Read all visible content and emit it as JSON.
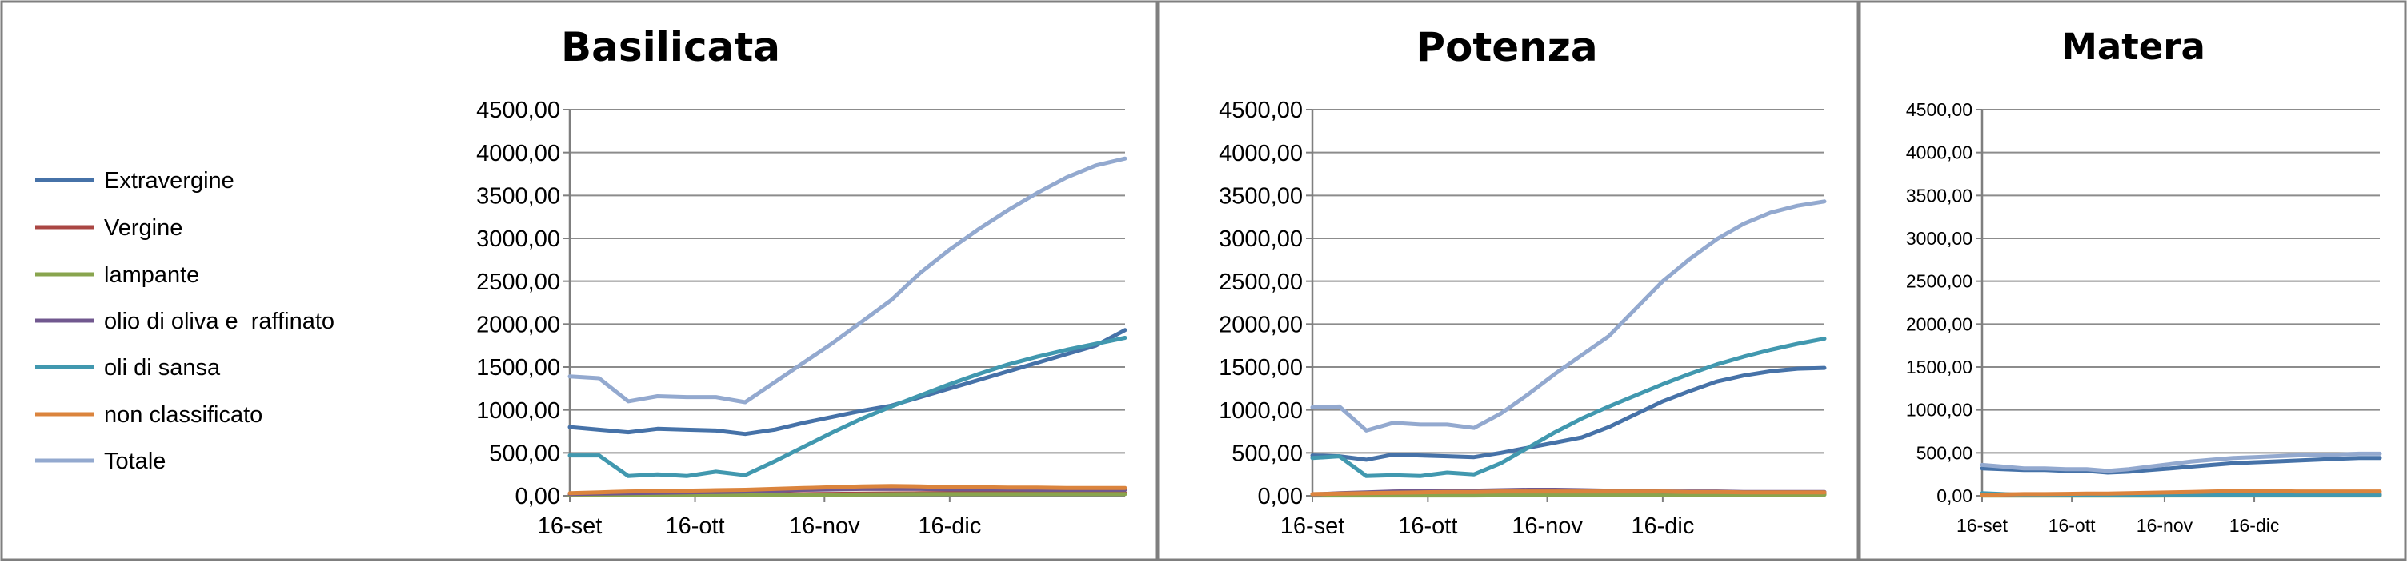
{
  "colors": {
    "Extravergine": "#4672a8",
    "Vergine": "#aa4643",
    "lampante": "#89a54e",
    "olio di oliva e  raffinato": "#71588f",
    "oli di sansa": "#4198af",
    "non classificato": "#db843d",
    "Totale": "#93a9cf"
  },
  "legend": {
    "items": [
      "Extravergine",
      "Vergine",
      "lampante",
      "olio di oliva e  raffinato",
      "oli di sansa",
      "non classificato",
      "Totale"
    ]
  },
  "chart_data": [
    {
      "type": "line",
      "title": "Basilicata",
      "xlabel": "",
      "ylabel": "",
      "ylim": [
        0,
        4500
      ],
      "y_ticks": [
        "0,00",
        "500,00",
        "1000,00",
        "1500,00",
        "2000,00",
        "2500,00",
        "3000,00",
        "3500,00",
        "4000,00",
        "4500,00"
      ],
      "x": [
        0,
        7,
        14,
        21,
        28,
        35,
        42,
        49,
        56,
        63,
        70,
        77,
        84,
        91,
        98,
        105,
        112,
        119,
        126,
        133
      ],
      "x_ticks": [
        {
          "label": "16-set",
          "x": 0
        },
        {
          "label": "16-ott",
          "x": 30
        },
        {
          "label": "16-nov",
          "x": 61
        },
        {
          "label": "16-dic",
          "x": 91
        }
      ],
      "xlim": [
        0,
        133
      ],
      "grid": true,
      "series": [
        {
          "name": "Extravergine",
          "values": [
            800,
            770,
            740,
            780,
            770,
            760,
            720,
            770,
            850,
            920,
            990,
            1050,
            1150,
            1250,
            1350,
            1450,
            1550,
            1650,
            1750,
            1930
          ]
        },
        {
          "name": "Vergine",
          "values": [
            10,
            10,
            10,
            12,
            12,
            12,
            15,
            18,
            20,
            22,
            25,
            28,
            30,
            32,
            32,
            30,
            30,
            30,
            30,
            30
          ]
        },
        {
          "name": "lampante",
          "values": [
            5,
            5,
            5,
            5,
            5,
            5,
            5,
            8,
            10,
            12,
            15,
            18,
            20,
            20,
            20,
            20,
            20,
            20,
            20,
            20
          ]
        },
        {
          "name": "olio di oliva e  raffinato",
          "values": [
            20,
            25,
            30,
            35,
            40,
            45,
            50,
            60,
            70,
            75,
            80,
            80,
            80,
            75,
            75,
            75,
            70,
            70,
            70,
            70
          ]
        },
        {
          "name": "oli di sansa",
          "values": [
            470,
            470,
            230,
            250,
            230,
            280,
            240,
            400,
            570,
            740,
            900,
            1040,
            1170,
            1300,
            1420,
            1530,
            1620,
            1700,
            1770,
            1840
          ]
        },
        {
          "name": "non classificato",
          "values": [
            30,
            40,
            50,
            55,
            60,
            65,
            70,
            80,
            90,
            100,
            110,
            115,
            110,
            100,
            100,
            95,
            95,
            90,
            90,
            90
          ]
        },
        {
          "name": "Totale",
          "values": [
            1390,
            1370,
            1100,
            1160,
            1150,
            1150,
            1090,
            1320,
            1550,
            1780,
            2030,
            2280,
            2600,
            2870,
            3110,
            3330,
            3530,
            3710,
            3850,
            3930
          ]
        }
      ]
    },
    {
      "type": "line",
      "title": "Potenza",
      "xlabel": "",
      "ylabel": "",
      "ylim": [
        0,
        4500
      ],
      "y_ticks": [
        "0,00",
        "500,00",
        "1000,00",
        "1500,00",
        "2000,00",
        "2500,00",
        "3000,00",
        "3500,00",
        "4000,00",
        "4500,00"
      ],
      "x": [
        0,
        7,
        14,
        21,
        28,
        35,
        42,
        49,
        56,
        63,
        70,
        77,
        84,
        91,
        98,
        105,
        112,
        119,
        126,
        133
      ],
      "x_ticks": [
        {
          "label": "16-set",
          "x": 0
        },
        {
          "label": "16-ott",
          "x": 30
        },
        {
          "label": "16-nov",
          "x": 61
        },
        {
          "label": "16-dic",
          "x": 91
        }
      ],
      "xlim": [
        0,
        133
      ],
      "grid": true,
      "series": [
        {
          "name": "Extravergine",
          "values": [
            470,
            460,
            420,
            480,
            470,
            460,
            450,
            500,
            560,
            620,
            680,
            800,
            950,
            1100,
            1220,
            1330,
            1400,
            1450,
            1480,
            1490
          ]
        },
        {
          "name": "Vergine",
          "values": [
            8,
            8,
            8,
            10,
            10,
            10,
            12,
            14,
            16,
            18,
            20,
            20,
            20,
            20,
            20,
            20,
            20,
            20,
            20,
            20
          ]
        },
        {
          "name": "lampante",
          "values": [
            4,
            4,
            4,
            4,
            4,
            4,
            4,
            6,
            8,
            10,
            12,
            12,
            12,
            12,
            12,
            12,
            12,
            12,
            12,
            12
          ]
        },
        {
          "name": "olio di oliva e  raffinato",
          "values": [
            15,
            30,
            40,
            50,
            55,
            60,
            60,
            65,
            70,
            70,
            65,
            60,
            55,
            50,
            50,
            50,
            45,
            45,
            45,
            45
          ]
        },
        {
          "name": "oli di sansa",
          "values": [
            440,
            460,
            230,
            240,
            230,
            270,
            250,
            380,
            560,
            740,
            900,
            1040,
            1170,
            1300,
            1420,
            1530,
            1620,
            1700,
            1770,
            1830
          ]
        },
        {
          "name": "non classificato",
          "values": [
            20,
            25,
            30,
            35,
            40,
            45,
            45,
            50,
            50,
            50,
            50,
            50,
            50,
            50,
            45,
            45,
            40,
            40,
            40,
            40
          ]
        },
        {
          "name": "Totale",
          "values": [
            1030,
            1040,
            760,
            850,
            830,
            830,
            790,
            960,
            1180,
            1420,
            1640,
            1860,
            2180,
            2500,
            2760,
            2990,
            3170,
            3300,
            3380,
            3430
          ]
        }
      ]
    },
    {
      "type": "line",
      "title": "Matera",
      "xlabel": "",
      "ylabel": "",
      "ylim": [
        0,
        4500
      ],
      "y_ticks": [
        "0,00",
        "500,00",
        "1000,00",
        "1500,00",
        "2000,00",
        "2500,00",
        "3000,00",
        "3500,00",
        "4000,00",
        "4500,00"
      ],
      "x": [
        0,
        7,
        14,
        21,
        28,
        35,
        42,
        49,
        56,
        63,
        70,
        77,
        84,
        91,
        98,
        105,
        112,
        119,
        126,
        133
      ],
      "x_ticks": [
        {
          "label": "16-set",
          "x": 0
        },
        {
          "label": "16-ott",
          "x": 30
        },
        {
          "label": "16-nov",
          "x": 61
        },
        {
          "label": "16-dic",
          "x": 91
        }
      ],
      "xlim": [
        0,
        133
      ],
      "grid": true,
      "series": [
        {
          "name": "Extravergine",
          "values": [
            320,
            310,
            300,
            300,
            290,
            290,
            270,
            280,
            300,
            320,
            340,
            360,
            380,
            390,
            400,
            410,
            420,
            430,
            440,
            440
          ]
        },
        {
          "name": "Vergine",
          "values": [
            5,
            5,
            5,
            5,
            5,
            5,
            5,
            6,
            6,
            7,
            8,
            8,
            8,
            8,
            8,
            8,
            8,
            8,
            8,
            8
          ]
        },
        {
          "name": "lampante",
          "values": [
            2,
            2,
            2,
            2,
            2,
            2,
            2,
            3,
            3,
            4,
            4,
            4,
            4,
            4,
            4,
            4,
            4,
            4,
            4,
            4
          ]
        },
        {
          "name": "olio di oliva e  raffinato",
          "values": [
            10,
            10,
            12,
            12,
            14,
            14,
            15,
            16,
            18,
            18,
            18,
            18,
            18,
            16,
            16,
            16,
            15,
            15,
            15,
            15
          ]
        },
        {
          "name": "oli di sansa",
          "values": [
            30,
            20,
            10,
            10,
            10,
            10,
            10,
            10,
            10,
            10,
            10,
            10,
            10,
            10,
            10,
            10,
            10,
            10,
            10,
            10
          ]
        },
        {
          "name": "non classificato",
          "values": [
            10,
            15,
            20,
            20,
            22,
            25,
            25,
            30,
            35,
            40,
            45,
            50,
            55,
            55,
            55,
            50,
            50,
            50,
            50,
            50
          ]
        },
        {
          "name": "Totale",
          "values": [
            360,
            340,
            320,
            320,
            310,
            310,
            290,
            310,
            340,
            370,
            400,
            420,
            440,
            450,
            460,
            470,
            480,
            480,
            490,
            490
          ]
        }
      ]
    }
  ]
}
